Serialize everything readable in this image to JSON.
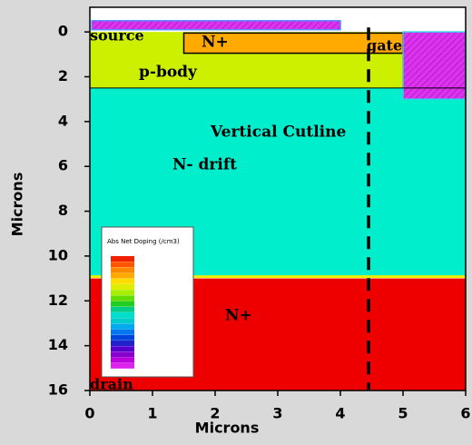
{
  "chart_data": {
    "type": "structure",
    "xlabel": "Microns",
    "ylabel": "Microns",
    "xlim": [
      0,
      6
    ],
    "ylim": [
      16,
      -1.1
    ],
    "xticks": [
      0,
      1,
      2,
      3,
      4,
      5,
      6
    ],
    "yticks": [
      0,
      2,
      4,
      6,
      8,
      10,
      12,
      14,
      16
    ],
    "regions": [
      {
        "name": "p-body",
        "color": "#ccf000",
        "x": [
          0,
          5
        ],
        "y": [
          0,
          2.5
        ]
      },
      {
        "name": "N- drift",
        "color": "#00eecc",
        "x": [
          0,
          6
        ],
        "y": [
          2.5,
          10.9
        ]
      },
      {
        "name": "N+",
        "color": "#ee0000",
        "x": [
          0,
          6
        ],
        "y": [
          11,
          16
        ]
      },
      {
        "name": "N+",
        "color": "#ffaa00",
        "x": [
          1.5,
          5
        ],
        "y": [
          0.05,
          0.95
        ]
      },
      {
        "name": "source",
        "color": "#dd33ee",
        "x": [
          0.03,
          4
        ],
        "y": [
          -0.5,
          -0.1
        ]
      },
      {
        "name": "gate",
        "color": "#dd33ee",
        "x": [
          5,
          6
        ],
        "y": [
          0,
          3
        ]
      }
    ],
    "cutline": {
      "label": "Vertical Cutline",
      "x": 4.45,
      "y": [
        -0.2,
        16
      ]
    },
    "annotations": [
      "source",
      "N+",
      "gate",
      "p-body",
      "N- drift",
      "N+",
      "drain"
    ],
    "legend_title": "Abs Net Doping (/cm3)"
  }
}
